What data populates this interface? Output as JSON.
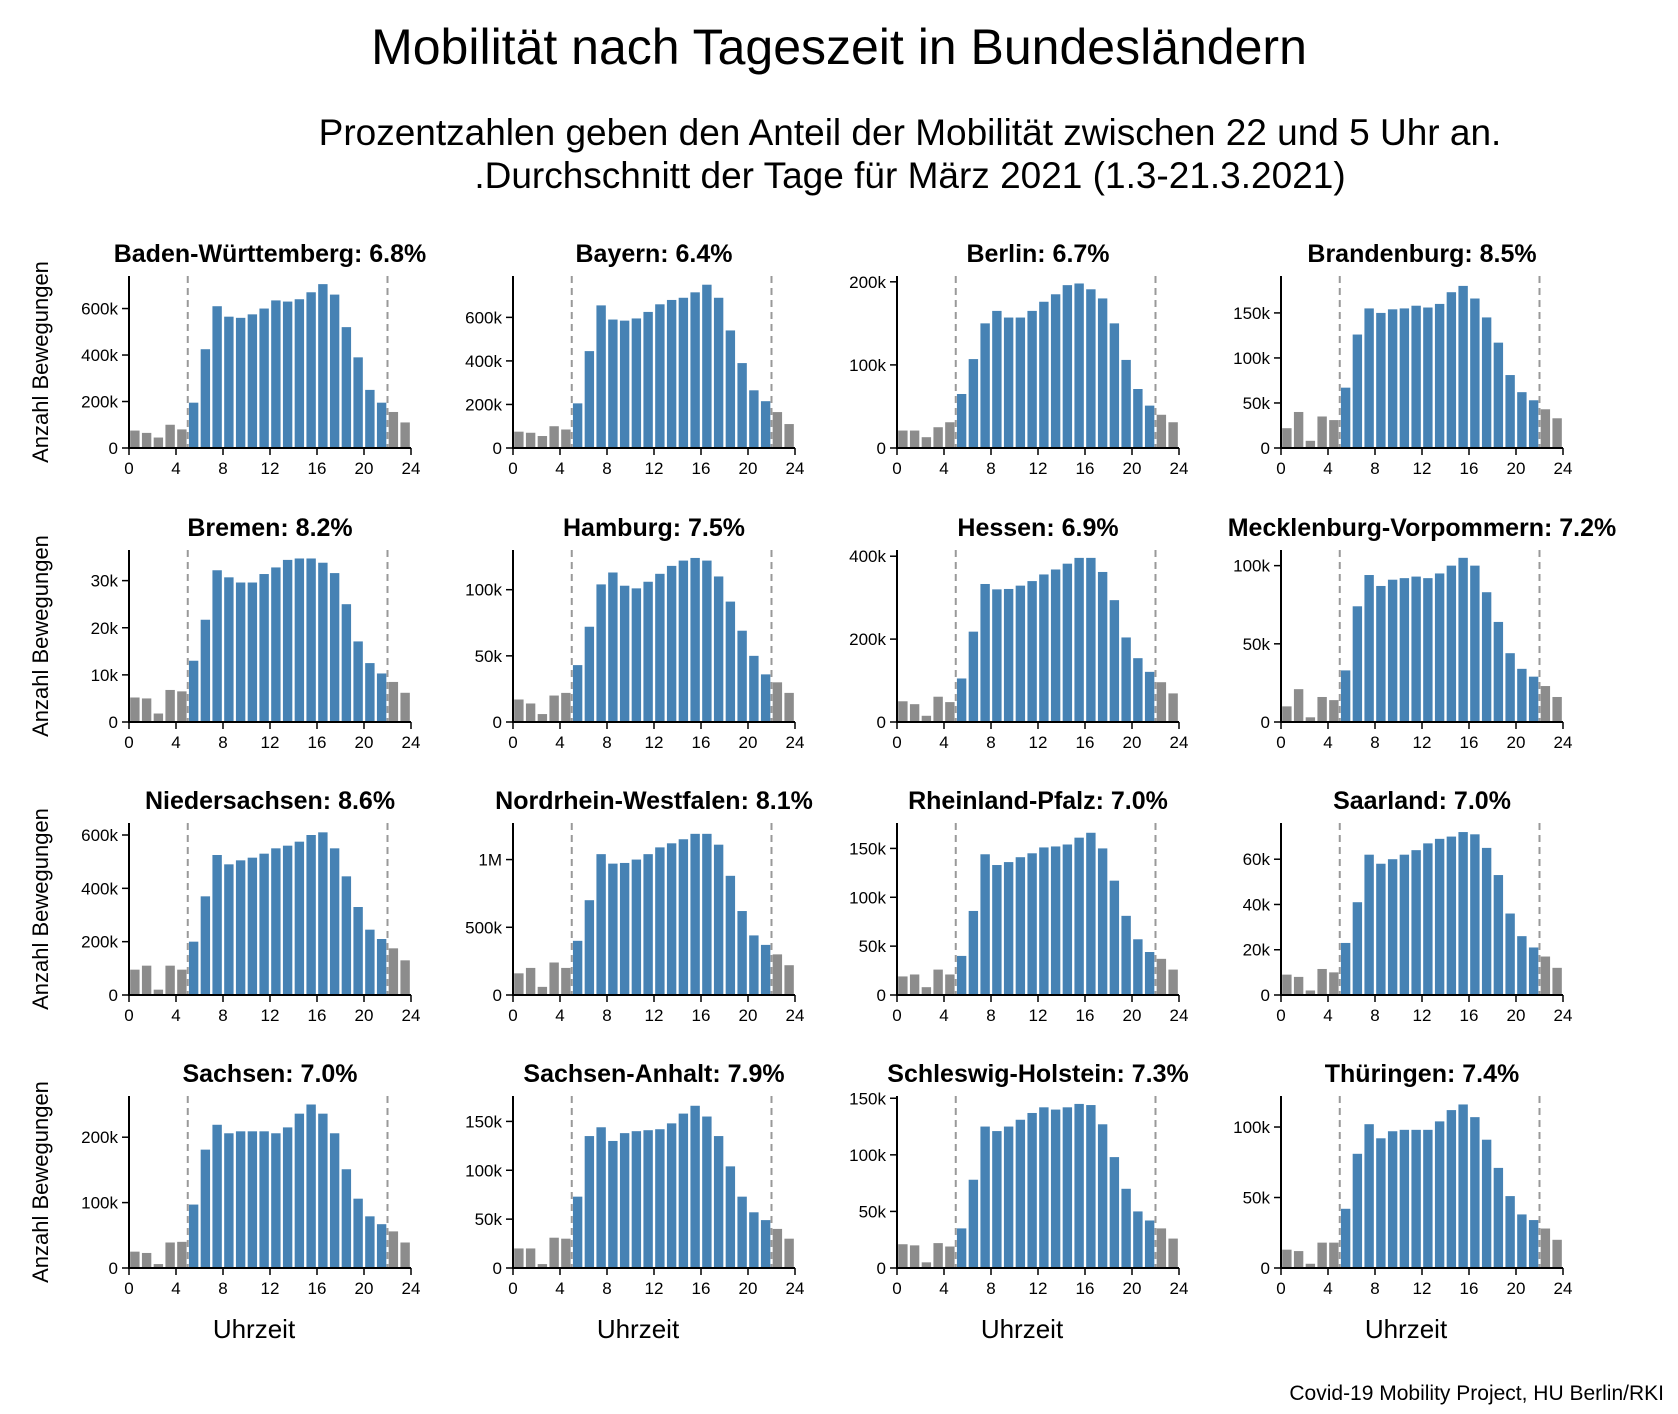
{
  "title": "Mobilität nach Tageszeit in Bundesländern",
  "subtitle_line1": "Prozentzahlen geben den Anteil der Mobilität zwischen 22 und 5 Uhr an.",
  "subtitle_line2": ".Durchschnitt der Tage für März 2021 (1.3-21.3.2021)",
  "source": "Covid-19 Mobility Project, HU Berlin/RKI",
  "colors": {
    "day": "#4682b4",
    "night": "#8c8c8c",
    "marker": "#999999"
  },
  "chart_data": [
    {
      "type": "bar",
      "title": "Baden-Württemberg: 6.8%",
      "ylabel": "Anzahl Bewegungen",
      "xlabel": "",
      "x": [
        0,
        1,
        2,
        3,
        4,
        5,
        6,
        7,
        8,
        9,
        10,
        11,
        12,
        13,
        14,
        15,
        16,
        17,
        18,
        19,
        20,
        21,
        22,
        23
      ],
      "values": [
        75000,
        65000,
        45000,
        100000,
        80000,
        195000,
        425000,
        610000,
        565000,
        560000,
        575000,
        600000,
        635000,
        630000,
        640000,
        670000,
        705000,
        660000,
        520000,
        390000,
        250000,
        195000,
        155000,
        110000
      ],
      "yticks": [
        0,
        200000,
        400000,
        600000
      ],
      "ytick_labels": [
        "0",
        "200k",
        "400k",
        "600k"
      ],
      "ylim": [
        0,
        740000
      ],
      "xticks": [
        0,
        4,
        8,
        12,
        16,
        20,
        24
      ],
      "vlines": [
        5,
        22
      ]
    },
    {
      "type": "bar",
      "title": "Bayern: 6.4%",
      "ylabel": "",
      "xlabel": "",
      "x": [
        0,
        1,
        2,
        3,
        4,
        5,
        6,
        7,
        8,
        9,
        10,
        11,
        12,
        13,
        14,
        15,
        16,
        17,
        18,
        19,
        20,
        21,
        22,
        23
      ],
      "values": [
        75000,
        70000,
        55000,
        100000,
        85000,
        205000,
        445000,
        655000,
        590000,
        585000,
        595000,
        625000,
        660000,
        680000,
        690000,
        715000,
        750000,
        690000,
        540000,
        390000,
        265000,
        215000,
        165000,
        110000
      ],
      "yticks": [
        0,
        200000,
        400000,
        600000
      ],
      "ytick_labels": [
        "0",
        "200k",
        "400k",
        "600k"
      ],
      "ylim": [
        0,
        790000
      ],
      "xticks": [
        0,
        4,
        8,
        12,
        16,
        20,
        24
      ],
      "vlines": [
        5,
        22
      ]
    },
    {
      "type": "bar",
      "title": "Berlin: 6.7%",
      "ylabel": "",
      "xlabel": "",
      "x": [
        0,
        1,
        2,
        3,
        4,
        5,
        6,
        7,
        8,
        9,
        10,
        11,
        12,
        13,
        14,
        15,
        16,
        17,
        18,
        19,
        20,
        21,
        22,
        23
      ],
      "values": [
        21000,
        21000,
        13000,
        25000,
        31000,
        65000,
        107000,
        150000,
        165000,
        157000,
        157000,
        165000,
        176000,
        185000,
        196000,
        198000,
        191000,
        180000,
        150000,
        106000,
        71000,
        51000,
        40000,
        31000
      ],
      "yticks": [
        0,
        100000,
        200000
      ],
      "ytick_labels": [
        "0",
        "100k",
        "200k"
      ],
      "ylim": [
        0,
        207000
      ],
      "xticks": [
        0,
        4,
        8,
        12,
        16,
        20,
        24
      ],
      "vlines": [
        5,
        22
      ]
    },
    {
      "type": "bar",
      "title": "Brandenburg: 8.5%",
      "ylabel": "",
      "xlabel": "",
      "x": [
        0,
        1,
        2,
        3,
        4,
        5,
        6,
        7,
        8,
        9,
        10,
        11,
        12,
        13,
        14,
        15,
        16,
        17,
        18,
        19,
        20,
        21,
        22,
        23
      ],
      "values": [
        22000,
        40000,
        8000,
        35000,
        31000,
        67000,
        126000,
        155000,
        150000,
        154000,
        155000,
        158000,
        156000,
        160000,
        173000,
        180000,
        166000,
        145000,
        117000,
        81000,
        62000,
        53000,
        43000,
        33000
      ],
      "yticks": [
        0,
        50000,
        100000,
        150000
      ],
      "ytick_labels": [
        "0",
        "50k",
        "100k",
        "150k"
      ],
      "ylim": [
        0,
        191000
      ],
      "xticks": [
        0,
        4,
        8,
        12,
        16,
        20,
        24
      ],
      "vlines": [
        5,
        22
      ]
    },
    {
      "type": "bar",
      "title": "Bremen: 8.2%",
      "ylabel": "Anzahl Bewegungen",
      "xlabel": "",
      "x": [
        0,
        1,
        2,
        3,
        4,
        5,
        6,
        7,
        8,
        9,
        10,
        11,
        12,
        13,
        14,
        15,
        16,
        17,
        18,
        19,
        20,
        21,
        22,
        23
      ],
      "values": [
        5200,
        5000,
        1800,
        6800,
        6500,
        13000,
        21700,
        32200,
        30700,
        29600,
        29600,
        31400,
        32800,
        34400,
        34700,
        34700,
        33800,
        31600,
        25000,
        17100,
        12500,
        10300,
        8500,
        6200
      ],
      "yticks": [
        0,
        10000,
        20000,
        30000
      ],
      "ytick_labels": [
        "0",
        "10k",
        "20k",
        "30k"
      ],
      "ylim": [
        0,
        36500
      ],
      "xticks": [
        0,
        4,
        8,
        12,
        16,
        20,
        24
      ],
      "vlines": [
        5,
        22
      ]
    },
    {
      "type": "bar",
      "title": "Hamburg: 7.5%",
      "ylabel": "",
      "xlabel": "",
      "x": [
        0,
        1,
        2,
        3,
        4,
        5,
        6,
        7,
        8,
        9,
        10,
        11,
        12,
        13,
        14,
        15,
        16,
        17,
        18,
        19,
        20,
        21,
        22,
        23
      ],
      "values": [
        17000,
        14000,
        6000,
        20000,
        22000,
        43000,
        72000,
        104000,
        113000,
        103000,
        101000,
        106000,
        112000,
        118000,
        122000,
        124000,
        122000,
        110000,
        91000,
        69000,
        50000,
        36000,
        30000,
        22000
      ],
      "yticks": [
        0,
        50000,
        100000
      ],
      "ytick_labels": [
        "0",
        "50k",
        "100k"
      ],
      "ylim": [
        0,
        130000
      ],
      "xticks": [
        0,
        4,
        8,
        12,
        16,
        20,
        24
      ],
      "vlines": [
        5,
        22
      ]
    },
    {
      "type": "bar",
      "title": "Hessen: 6.9%",
      "ylabel": "",
      "xlabel": "",
      "x": [
        0,
        1,
        2,
        3,
        4,
        5,
        6,
        7,
        8,
        9,
        10,
        11,
        12,
        13,
        14,
        15,
        16,
        17,
        18,
        19,
        20,
        21,
        22,
        23
      ],
      "values": [
        50000,
        43000,
        15000,
        61000,
        48000,
        105000,
        218000,
        333000,
        320000,
        321000,
        329000,
        340000,
        356000,
        368000,
        382000,
        396000,
        396000,
        362000,
        294000,
        204000,
        154000,
        121000,
        96000,
        69000
      ],
      "yticks": [
        0,
        200000,
        400000
      ],
      "ytick_labels": [
        "0",
        "200k",
        "400k"
      ],
      "ylim": [
        0,
        415000
      ],
      "xticks": [
        0,
        4,
        8,
        12,
        16,
        20,
        24
      ],
      "vlines": [
        5,
        22
      ]
    },
    {
      "type": "bar",
      "title": "Mecklenburg-Vorpommern: 7.2%",
      "ylabel": "",
      "xlabel": "",
      "x": [
        0,
        1,
        2,
        3,
        4,
        5,
        6,
        7,
        8,
        9,
        10,
        11,
        12,
        13,
        14,
        15,
        16,
        17,
        18,
        19,
        20,
        21,
        22,
        23
      ],
      "values": [
        10000,
        21000,
        3000,
        16000,
        14000,
        33000,
        74000,
        94000,
        87000,
        91000,
        92000,
        93000,
        92000,
        95000,
        100000,
        105000,
        100000,
        83000,
        64000,
        44000,
        34000,
        29000,
        23000,
        16000
      ],
      "yticks": [
        0,
        50000,
        100000
      ],
      "ytick_labels": [
        "0",
        "50k",
        "100k"
      ],
      "ylim": [
        0,
        110000
      ],
      "xticks": [
        0,
        4,
        8,
        12,
        16,
        20,
        24
      ],
      "vlines": [
        5,
        22
      ]
    },
    {
      "type": "bar",
      "title": "Niedersachsen: 8.6%",
      "ylabel": "Anzahl Bewegungen",
      "xlabel": "",
      "x": [
        0,
        1,
        2,
        3,
        4,
        5,
        6,
        7,
        8,
        9,
        10,
        11,
        12,
        13,
        14,
        15,
        16,
        17,
        18,
        19,
        20,
        21,
        22,
        23
      ],
      "values": [
        95000,
        110000,
        20000,
        110000,
        95000,
        200000,
        370000,
        525000,
        490000,
        505000,
        515000,
        530000,
        550000,
        560000,
        575000,
        600000,
        610000,
        550000,
        445000,
        330000,
        245000,
        210000,
        175000,
        130000
      ],
      "yticks": [
        0,
        200000,
        400000,
        600000
      ],
      "ytick_labels": [
        "0",
        "200k",
        "400k",
        "600k"
      ],
      "ylim": [
        0,
        645000
      ],
      "xticks": [
        0,
        4,
        8,
        12,
        16,
        20,
        24
      ],
      "vlines": [
        5,
        22
      ]
    },
    {
      "type": "bar",
      "title": "Nordrhein-Westfalen: 8.1%",
      "ylabel": "",
      "xlabel": "",
      "x": [
        0,
        1,
        2,
        3,
        4,
        5,
        6,
        7,
        8,
        9,
        10,
        11,
        12,
        13,
        14,
        15,
        16,
        17,
        18,
        19,
        20,
        21,
        22,
        23
      ],
      "values": [
        160000,
        200000,
        60000,
        240000,
        200000,
        400000,
        700000,
        1040000,
        970000,
        975000,
        1000000,
        1040000,
        1090000,
        1120000,
        1150000,
        1190000,
        1190000,
        1110000,
        880000,
        620000,
        440000,
        370000,
        300000,
        220000
      ],
      "yticks": [
        0,
        500000,
        1000000
      ],
      "ytick_labels": [
        "0",
        "500k",
        "1M"
      ],
      "ylim": [
        0,
        1270000
      ],
      "xticks": [
        0,
        4,
        8,
        12,
        16,
        20,
        24
      ],
      "vlines": [
        5,
        22
      ]
    },
    {
      "type": "bar",
      "title": "Rheinland-Pfalz: 7.0%",
      "ylabel": "",
      "xlabel": "",
      "x": [
        0,
        1,
        2,
        3,
        4,
        5,
        6,
        7,
        8,
        9,
        10,
        11,
        12,
        13,
        14,
        15,
        16,
        17,
        18,
        19,
        20,
        21,
        22,
        23
      ],
      "values": [
        19000,
        21000,
        8000,
        26000,
        21000,
        40000,
        86000,
        144000,
        133000,
        136000,
        141000,
        145000,
        151000,
        152000,
        154000,
        161000,
        166000,
        150000,
        117000,
        81000,
        57000,
        44000,
        37000,
        26000
      ],
      "yticks": [
        0,
        50000,
        100000,
        150000
      ],
      "ytick_labels": [
        "0",
        "50k",
        "100k",
        "150k"
      ],
      "ylim": [
        0,
        176000
      ],
      "xticks": [
        0,
        4,
        8,
        12,
        16,
        20,
        24
      ],
      "vlines": [
        5,
        22
      ]
    },
    {
      "type": "bar",
      "title": "Saarland: 7.0%",
      "ylabel": "",
      "xlabel": "",
      "x": [
        0,
        1,
        2,
        3,
        4,
        5,
        6,
        7,
        8,
        9,
        10,
        11,
        12,
        13,
        14,
        15,
        16,
        17,
        18,
        19,
        20,
        21,
        22,
        23
      ],
      "values": [
        9000,
        8000,
        2000,
        11500,
        10000,
        23000,
        41000,
        62000,
        58000,
        60000,
        62000,
        64000,
        67000,
        69000,
        70000,
        72000,
        71000,
        65000,
        53000,
        36000,
        26000,
        21000,
        17000,
        12000
      ],
      "yticks": [
        0,
        20000,
        40000,
        60000
      ],
      "ytick_labels": [
        "0",
        "20k",
        "40k",
        "60k"
      ],
      "ylim": [
        0,
        76000
      ],
      "xticks": [
        0,
        4,
        8,
        12,
        16,
        20,
        24
      ],
      "vlines": [
        5,
        22
      ]
    },
    {
      "type": "bar",
      "title": "Sachsen: 7.0%",
      "ylabel": "Anzahl Bewegungen",
      "xlabel": "Uhrzeit",
      "x": [
        0,
        1,
        2,
        3,
        4,
        5,
        6,
        7,
        8,
        9,
        10,
        11,
        12,
        13,
        14,
        15,
        16,
        17,
        18,
        19,
        20,
        21,
        22,
        23
      ],
      "values": [
        25000,
        23000,
        6000,
        39000,
        40000,
        97000,
        181000,
        219000,
        206000,
        209000,
        209000,
        209000,
        206000,
        215000,
        236000,
        250000,
        236000,
        206000,
        151000,
        106000,
        79000,
        67000,
        56000,
        39000
      ],
      "yticks": [
        0,
        100000,
        200000
      ],
      "ytick_labels": [
        "0",
        "100k",
        "200k"
      ],
      "ylim": [
        0,
        263000
      ],
      "xticks": [
        0,
        4,
        8,
        12,
        16,
        20,
        24
      ],
      "vlines": [
        5,
        22
      ]
    },
    {
      "type": "bar",
      "title": "Sachsen-Anhalt: 7.9%",
      "ylabel": "",
      "xlabel": "Uhrzeit",
      "x": [
        0,
        1,
        2,
        3,
        4,
        5,
        6,
        7,
        8,
        9,
        10,
        11,
        12,
        13,
        14,
        15,
        16,
        17,
        18,
        19,
        20,
        21,
        22,
        23
      ],
      "values": [
        20000,
        20000,
        4000,
        31000,
        30000,
        73000,
        135000,
        144000,
        130000,
        138000,
        140000,
        141000,
        142000,
        148000,
        158000,
        166000,
        155000,
        135000,
        104000,
        73000,
        57000,
        49000,
        40000,
        30000
      ],
      "yticks": [
        0,
        50000,
        100000,
        150000
      ],
      "ytick_labels": [
        "0",
        "50k",
        "100k",
        "150k"
      ],
      "ylim": [
        0,
        176000
      ],
      "xticks": [
        0,
        4,
        8,
        12,
        16,
        20,
        24
      ],
      "vlines": [
        5,
        22
      ]
    },
    {
      "type": "bar",
      "title": "Schleswig-Holstein: 7.3%",
      "ylabel": "",
      "xlabel": "Uhrzeit",
      "x": [
        0,
        1,
        2,
        3,
        4,
        5,
        6,
        7,
        8,
        9,
        10,
        11,
        12,
        13,
        14,
        15,
        16,
        17,
        18,
        19,
        20,
        21,
        22,
        23
      ],
      "values": [
        21000,
        20000,
        5000,
        22000,
        19000,
        35000,
        78000,
        125000,
        121000,
        125000,
        131000,
        137000,
        142000,
        140000,
        142000,
        145000,
        144000,
        127000,
        98000,
        70000,
        50000,
        42000,
        35000,
        26000
      ],
      "yticks": [
        0,
        50000,
        100000,
        150000
      ],
      "ytick_labels": [
        "0",
        "50k",
        "100k",
        "150k"
      ],
      "ylim": [
        0,
        152000
      ],
      "xticks": [
        0,
        4,
        8,
        12,
        16,
        20,
        24
      ],
      "vlines": [
        5,
        22
      ]
    },
    {
      "type": "bar",
      "title": "Thüringen: 7.4%",
      "ylabel": "",
      "xlabel": "Uhrzeit",
      "x": [
        0,
        1,
        2,
        3,
        4,
        5,
        6,
        7,
        8,
        9,
        10,
        11,
        12,
        13,
        14,
        15,
        16,
        17,
        18,
        19,
        20,
        21,
        22,
        23
      ],
      "values": [
        13000,
        12000,
        3000,
        18000,
        18000,
        42000,
        81000,
        102000,
        92000,
        97000,
        98000,
        98000,
        98000,
        104000,
        112000,
        116000,
        107000,
        91000,
        71000,
        51000,
        38000,
        34000,
        28000,
        20000
      ],
      "yticks": [
        0,
        50000,
        100000
      ],
      "ytick_labels": [
        "0",
        "50k",
        "100k"
      ],
      "ylim": [
        0,
        122000
      ],
      "xticks": [
        0,
        4,
        8,
        12,
        16,
        20,
        24
      ],
      "vlines": [
        5,
        22
      ]
    }
  ]
}
